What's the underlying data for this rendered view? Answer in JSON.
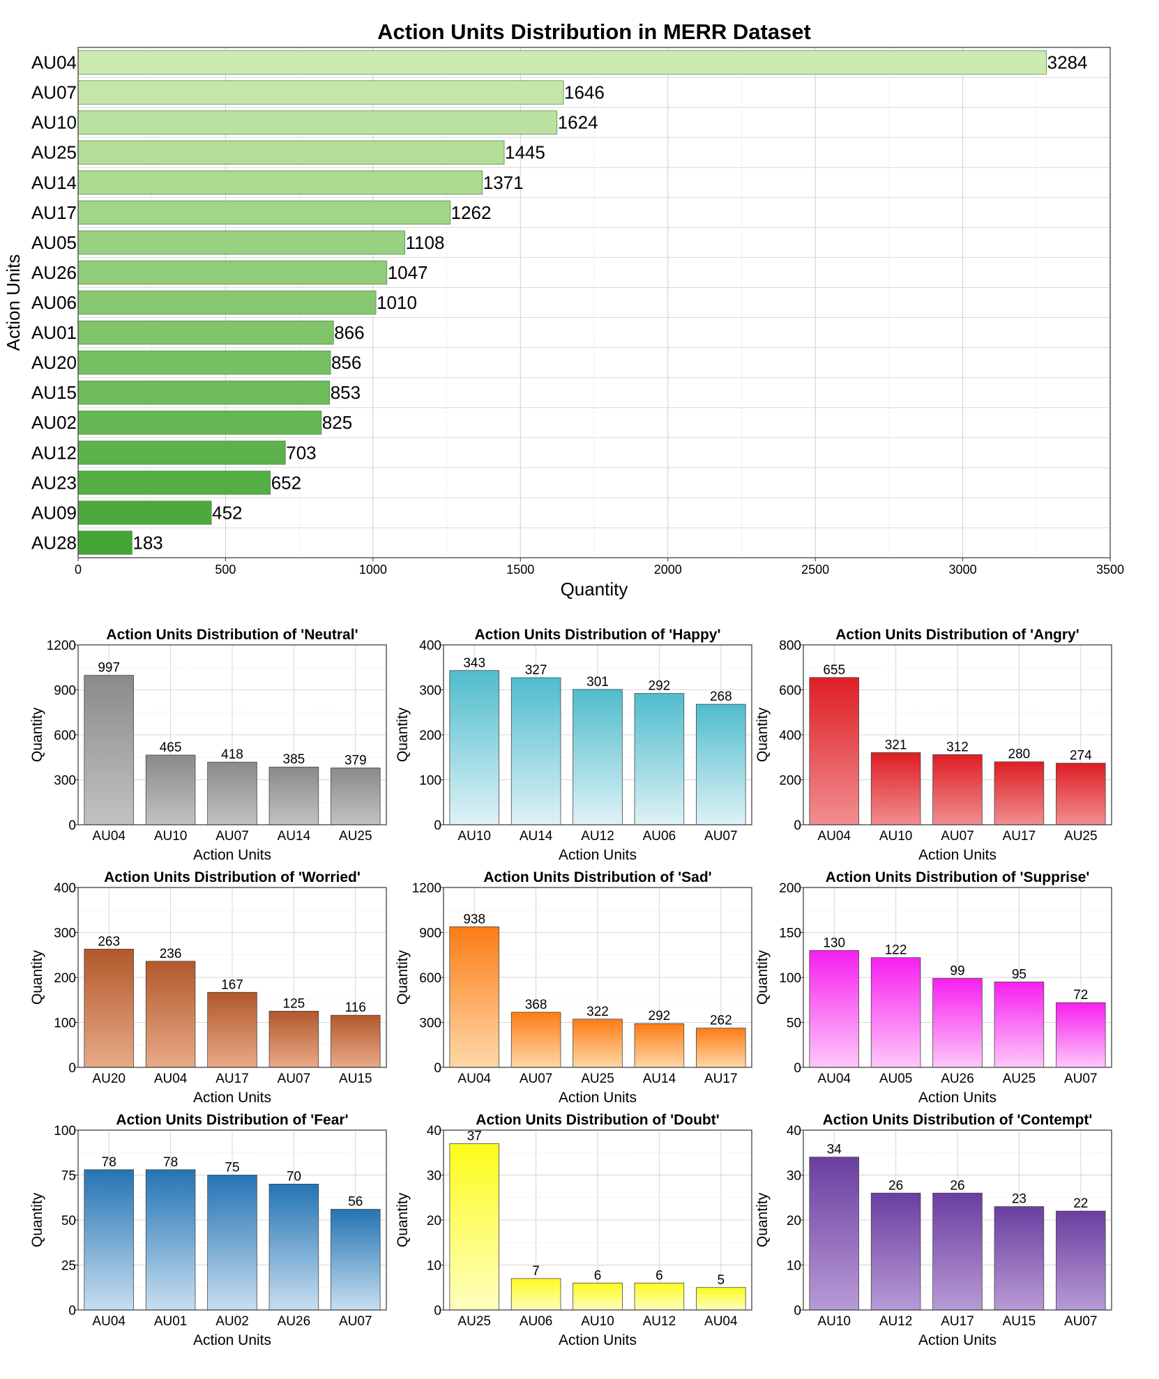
{
  "chart_data": [
    {
      "type": "bar",
      "orientation": "horizontal",
      "title": "Action Units Distribution in MERR Dataset",
      "xlabel": "Quantity",
      "ylabel": "Action Units",
      "xlim": [
        0,
        3500
      ],
      "xticks": [
        "0",
        "500",
        "1000",
        "1500",
        "2000",
        "2500",
        "3000",
        "3500"
      ],
      "grid": true,
      "categories": [
        "AU04",
        "AU07",
        "AU10",
        "AU25",
        "AU14",
        "AU17",
        "AU05",
        "AU26",
        "AU06",
        "AU01",
        "AU20",
        "AU15",
        "AU02",
        "AU12",
        "AU23",
        "AU09",
        "AU28"
      ],
      "values": [
        3284,
        1646,
        1624,
        1445,
        1371,
        1262,
        1108,
        1047,
        1010,
        866,
        856,
        853,
        825,
        703,
        652,
        452,
        183
      ],
      "value_labels": [
        "3284",
        "1646",
        "1624",
        "1445",
        "1371",
        "1262",
        "1108",
        "1047",
        "1010",
        "866",
        "856",
        "853",
        "825",
        "703",
        "652",
        "452",
        "183"
      ],
      "colors": {
        "lightest": "#cdebb0",
        "darkest": "#43a535"
      }
    },
    {
      "type": "bar",
      "title": "Action Units Distribution of 'Neutral'",
      "xlabel": "Action Units",
      "ylabel": "Quantity",
      "ylim": [
        0,
        1200
      ],
      "yticks": [
        "0",
        "300",
        "600",
        "900",
        "1200"
      ],
      "categories": [
        "AU04",
        "AU10",
        "AU07",
        "AU14",
        "AU25"
      ],
      "values": [
        997,
        465,
        418,
        385,
        379
      ],
      "value_labels": [
        "997",
        "465",
        "418",
        "385",
        "379"
      ],
      "colors": {
        "top": "#8a8a8a",
        "bottom": "#c2c2c2"
      }
    },
    {
      "type": "bar",
      "title": "Action Units Distribution of 'Happy'",
      "xlabel": "Action Units",
      "ylabel": "Quantity",
      "ylim": [
        0,
        400
      ],
      "yticks": [
        "0",
        "100",
        "200",
        "300",
        "400"
      ],
      "categories": [
        "AU10",
        "AU14",
        "AU12",
        "AU06",
        "AU07"
      ],
      "values": [
        343,
        327,
        301,
        292,
        268
      ],
      "value_labels": [
        "343",
        "327",
        "301",
        "292",
        "268"
      ],
      "colors": {
        "top": "#4fbccd",
        "bottom": "#def2f6"
      }
    },
    {
      "type": "bar",
      "title": "Action Units Distribution of 'Angry'",
      "xlabel": "Action Units",
      "ylabel": "Quantity",
      "ylim": [
        0,
        800
      ],
      "yticks": [
        "0",
        "200",
        "400",
        "600",
        "800"
      ],
      "categories": [
        "AU04",
        "AU10",
        "AU07",
        "AU17",
        "AU25"
      ],
      "values": [
        655,
        321,
        312,
        280,
        274
      ],
      "value_labels": [
        "655",
        "321",
        "312",
        "280",
        "274"
      ],
      "colors": {
        "top": "#de1e24",
        "bottom": "#f18e90"
      }
    },
    {
      "type": "bar",
      "title": "Action Units Distribution of 'Worried'",
      "xlabel": "Action Units",
      "ylabel": "Quantity",
      "ylim": [
        0,
        400
      ],
      "yticks": [
        "0",
        "100",
        "200",
        "300",
        "400"
      ],
      "categories": [
        "AU20",
        "AU04",
        "AU17",
        "AU07",
        "AU15"
      ],
      "values": [
        263,
        236,
        167,
        125,
        116
      ],
      "value_labels": [
        "263",
        "236",
        "167",
        "125",
        "116"
      ],
      "colors": {
        "top": "#b2582b",
        "bottom": "#e8aa88"
      }
    },
    {
      "type": "bar",
      "title": "Action Units Distribution of 'Sad'",
      "xlabel": "Action Units",
      "ylabel": "Quantity",
      "ylim": [
        0,
        1200
      ],
      "yticks": [
        "0",
        "300",
        "600",
        "900",
        "1200"
      ],
      "categories": [
        "AU04",
        "AU07",
        "AU25",
        "AU14",
        "AU17"
      ],
      "values": [
        938,
        368,
        322,
        292,
        262
      ],
      "value_labels": [
        "938",
        "368",
        "322",
        "292",
        "262"
      ],
      "colors": {
        "top": "#fd7c16",
        "bottom": "#fed8a8"
      }
    },
    {
      "type": "bar",
      "title": "Action Units Distribution of 'Supprise'",
      "xlabel": "Action Units",
      "ylabel": "Quantity",
      "ylim": [
        0,
        200
      ],
      "yticks": [
        "0",
        "50",
        "100",
        "150",
        "200"
      ],
      "categories": [
        "AU04",
        "AU05",
        "AU26",
        "AU25",
        "AU07"
      ],
      "values": [
        130,
        122,
        99,
        95,
        72
      ],
      "value_labels": [
        "130",
        "122",
        "99",
        "95",
        "72"
      ],
      "colors": {
        "top": "#f71ff0",
        "bottom": "#fdc8f9"
      }
    },
    {
      "type": "bar",
      "title": "Action Units Distribution of 'Fear'",
      "xlabel": "Action Units",
      "ylabel": "Quantity",
      "ylim": [
        0,
        100
      ],
      "yticks": [
        "0",
        "25",
        "50",
        "75",
        "100"
      ],
      "categories": [
        "AU04",
        "AU01",
        "AU02",
        "AU26",
        "AU07"
      ],
      "values": [
        78,
        78,
        75,
        70,
        56
      ],
      "value_labels": [
        "78",
        "78",
        "75",
        "70",
        "56"
      ],
      "colors": {
        "top": "#2474b4",
        "bottom": "#c7def0"
      }
    },
    {
      "type": "bar",
      "title": "Action Units Distribution of 'Doubt'",
      "xlabel": "Action Units",
      "ylabel": "Quantity",
      "ylim": [
        0,
        40
      ],
      "yticks": [
        "0",
        "10",
        "20",
        "30",
        "40"
      ],
      "categories": [
        "AU25",
        "AU06",
        "AU10",
        "AU12",
        "AU04"
      ],
      "values": [
        37,
        7,
        6,
        6,
        5
      ],
      "value_labels": [
        "37",
        "7",
        "6",
        "6",
        "5"
      ],
      "colors": {
        "top": "#fcfc1c",
        "bottom": "#fefec0"
      }
    },
    {
      "type": "bar",
      "title": "Action Units Distribution of 'Contempt'",
      "xlabel": "Action Units",
      "ylabel": "Quantity",
      "ylim": [
        0,
        40
      ],
      "yticks": [
        "0",
        "10",
        "20",
        "30",
        "40"
      ],
      "categories": [
        "AU10",
        "AU12",
        "AU17",
        "AU15",
        "AU07"
      ],
      "values": [
        34,
        26,
        26,
        23,
        22
      ],
      "value_labels": [
        "34",
        "26",
        "26",
        "23",
        "22"
      ],
      "colors": {
        "top": "#6a3ea0",
        "bottom": "#b89ad6"
      }
    }
  ]
}
